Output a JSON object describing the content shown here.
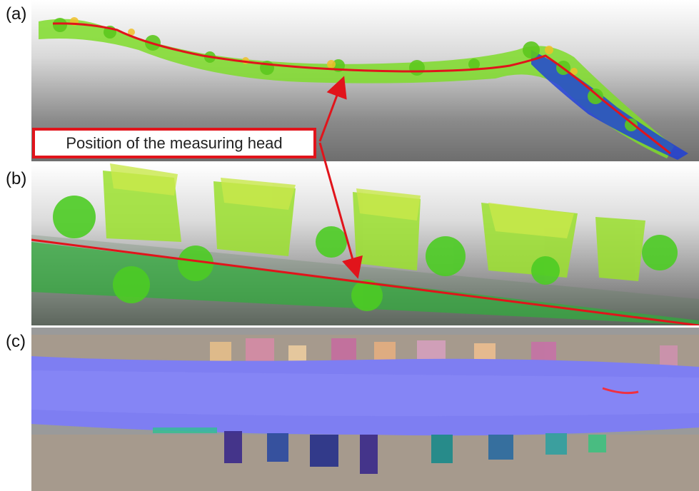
{
  "labels": {
    "a": "(a)",
    "b": "(b)",
    "c": "(c)"
  },
  "callout": {
    "text": "Position of the measuring head"
  },
  "colors": {
    "trajectory": "#e1141b",
    "callout_border": "#e1141b",
    "vegetation": "#7fdc2a",
    "building": "#9be02e",
    "road_green": "#2fae3a",
    "normal_map_road": "#7e7ef2",
    "far_points": "#1a3cdc"
  }
}
